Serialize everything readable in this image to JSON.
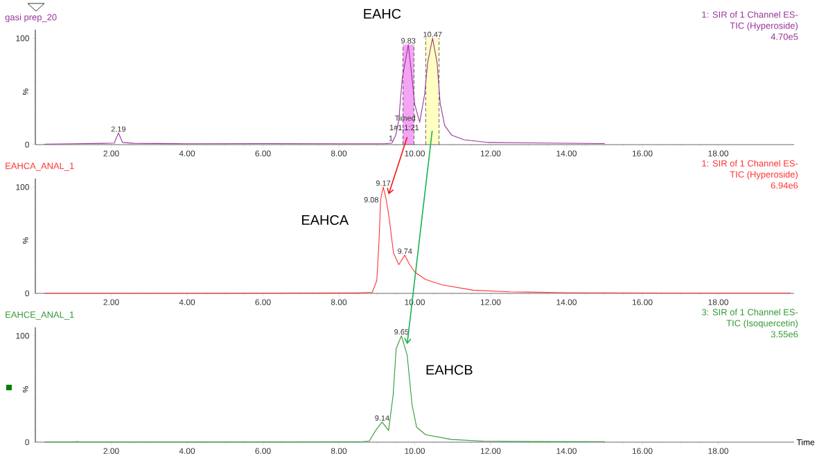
{
  "chart_data": [
    {
      "type": "line",
      "title": "gasi prep_20",
      "subtitle": "1: SIR of 1 Channel ES-TIC (Hyperoside)",
      "ylabel": "%",
      "x": [
        0.25,
        1,
        1.8,
        2.08,
        2.19,
        2.3,
        2.6,
        4,
        6,
        8,
        9.2,
        9.4,
        9.5,
        9.58,
        9.67,
        9.83,
        9.93,
        10.0,
        10.13,
        10.26,
        10.34,
        10.47,
        10.59,
        10.67,
        10.79,
        10.97,
        11.3,
        11.95,
        13.5,
        15
      ],
      "series": [
        {
          "color": "#993399",
          "values": [
            0.5,
            0.8,
            1.2,
            1.5,
            11,
            2,
            1.2,
            0.8,
            1,
            0.8,
            0.8,
            1.5,
            9,
            23,
            62,
            94,
            62,
            38,
            21,
            47,
            77,
            100,
            77,
            39,
            18,
            9,
            4.5,
            2,
            1.5,
            1
          ]
        }
      ],
      "xlim": [
        0,
        20
      ],
      "ylim": [
        0,
        108
      ],
      "xticks": [
        {
          "value": 2,
          "label": "2.00"
        },
        {
          "value": 4,
          "label": "4.00"
        },
        {
          "value": 6,
          "label": "6.00"
        },
        {
          "value": 8,
          "label": "8.00"
        },
        {
          "value": 10,
          "label": "10.00"
        },
        {
          "value": 12,
          "label": "12.00"
        },
        {
          "value": 14,
          "label": "14.00"
        },
        {
          "value": 16,
          "label": "16.00"
        },
        {
          "value": 18,
          "label": "18.00"
        }
      ],
      "yticks": [
        0,
        100
      ],
      "bands": [
        {
          "axis": "x",
          "from": 9.69,
          "to": 9.98,
          "color": "#f5a3f5"
        },
        {
          "axis": "x",
          "from": 10.29,
          "to": 10.64,
          "color": "#ffffc2"
        }
      ],
      "annotations": [
        "EAHC",
        {
          "text": "2.19",
          "x": 2.19,
          "y": 11
        },
        {
          "text": "9.83",
          "x": 9.83,
          "y": 94
        },
        {
          "text": "10.47",
          "x": 10.47,
          "y": 100
        },
        "Timed",
        "1#1,1:21",
        "1",
        "4.70e5"
      ]
    },
    {
      "type": "line",
      "title": "EAHCA_ANAL_1",
      "subtitle": "1: SIR of 1 Channel ES-TIC (Hyperoside)",
      "ylabel": "%",
      "x": [
        0.25,
        4,
        8.5,
        8.88,
        9.0,
        9.06,
        9.1,
        9.17,
        9.25,
        9.33,
        9.44,
        9.58,
        9.74,
        9.85,
        10.0,
        10.29,
        10.73,
        11.54,
        12.5,
        14,
        17,
        19.9
      ],
      "series": [
        {
          "color": "#ff3333",
          "values": [
            0.2,
            0.2,
            0.4,
            1,
            12,
            50,
            88,
            100,
            88,
            70,
            38,
            27,
            36,
            28,
            20,
            13,
            8,
            3,
            1.5,
            0.6,
            0.3,
            0.3
          ]
        }
      ],
      "xlim": [
        0,
        20
      ],
      "ylim": [
        0,
        108
      ],
      "xticks": [
        {
          "value": 2,
          "label": "2.00"
        },
        {
          "value": 4,
          "label": "4.00"
        },
        {
          "value": 6,
          "label": "6.00"
        },
        {
          "value": 8,
          "label": "8.00"
        },
        {
          "value": 10,
          "label": "10.00"
        },
        {
          "value": 12,
          "label": "12.00"
        },
        {
          "value": 14,
          "label": "14.00"
        },
        {
          "value": 16,
          "label": "16.00"
        },
        {
          "value": 18,
          "label": "18.00"
        }
      ],
      "yticks": [
        0,
        100
      ],
      "annotations": [
        "EAHCA",
        {
          "text": "9.08",
          "x": 9.08,
          "y": 88
        },
        {
          "text": "9.17",
          "x": 9.17,
          "y": 100
        },
        {
          "text": "9.74",
          "x": 9.74,
          "y": 36
        },
        "6.94e6"
      ]
    },
    {
      "type": "line",
      "title": "EAHCE_ANAL_1",
      "subtitle": "3: SIR of 1 Channel ES-TIC (Isoquercetin)",
      "ylabel": "%",
      "xlabel": "Time",
      "x": [
        0.25,
        1.0,
        1.1,
        1.2,
        4,
        8.5,
        8.63,
        8.8,
        8.97,
        9.14,
        9.31,
        9.43,
        9.51,
        9.65,
        9.8,
        9.93,
        10.05,
        10.29,
        10.97,
        11.8,
        13,
        15
      ],
      "series": [
        {
          "color": "#339933",
          "values": [
            0.2,
            0.2,
            0.6,
            0.2,
            0.2,
            0.3,
            0.5,
            1,
            11,
            19,
            11,
            44,
            88,
            100,
            82,
            35,
            14,
            7,
            2.5,
            1,
            0.6,
            0.5
          ]
        }
      ],
      "xlim": [
        0,
        20
      ],
      "ylim": [
        0,
        108
      ],
      "xticks": [
        {
          "value": 2,
          "label": "2.00"
        },
        {
          "value": 4,
          "label": "4.00"
        },
        {
          "value": 6,
          "label": "6.00"
        },
        {
          "value": 8,
          "label": "8.00"
        },
        {
          "value": 10,
          "label": "10.00"
        },
        {
          "value": 12,
          "label": "12.00"
        },
        {
          "value": 14,
          "label": "14.00"
        },
        {
          "value": 16,
          "label": "16.00"
        },
        {
          "value": 18,
          "label": "18.00"
        }
      ],
      "yticks": [
        0,
        100
      ],
      "annotations": [
        "EAHCB",
        {
          "text": "9.65",
          "x": 9.65,
          "y": 100
        },
        {
          "text": "9.14",
          "x": 9.14,
          "y": 19
        },
        "3.55e6"
      ]
    }
  ]
}
